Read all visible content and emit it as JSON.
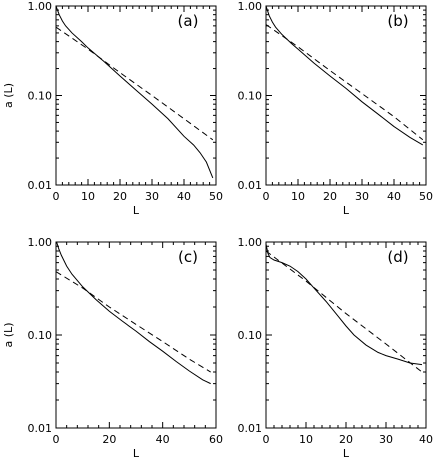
{
  "chart_data": [
    {
      "type": "line",
      "panel_label": "(a)",
      "xlabel": "L",
      "ylabel": "a (L)",
      "xlim": [
        0,
        50
      ],
      "ylim": [
        0.01,
        1.0
      ],
      "yscale": "log",
      "xticks": [
        "0",
        "10",
        "20",
        "30",
        "40",
        "50"
      ],
      "yticks": [
        "0.01",
        "0.10",
        "1.00"
      ],
      "series": [
        {
          "style": "solid",
          "x": [
            0,
            1,
            2,
            3,
            5,
            8,
            10,
            15,
            20,
            25,
            30,
            35,
            40,
            43,
            45,
            47,
            49
          ],
          "y": [
            1.0,
            0.8,
            0.68,
            0.6,
            0.5,
            0.4,
            0.34,
            0.24,
            0.165,
            0.115,
            0.08,
            0.055,
            0.035,
            0.028,
            0.023,
            0.018,
            0.012
          ]
        },
        {
          "style": "dashed",
          "x": [
            0,
            10,
            20,
            30,
            40,
            49
          ],
          "y": [
            0.58,
            0.33,
            0.18,
            0.1,
            0.055,
            0.032
          ]
        }
      ]
    },
    {
      "type": "line",
      "panel_label": "(b)",
      "xlabel": "L",
      "ylabel": "",
      "xlim": [
        0,
        50
      ],
      "ylim": [
        0.01,
        1.0
      ],
      "yscale": "log",
      "xticks": [
        "0",
        "10",
        "20",
        "30",
        "40",
        "50"
      ],
      "yticks": [
        "0.01",
        "0.10",
        "1.00"
      ],
      "series": [
        {
          "style": "solid",
          "x": [
            0,
            1,
            2,
            3,
            5,
            8,
            10,
            15,
            20,
            25,
            30,
            35,
            40,
            45,
            49
          ],
          "y": [
            1.0,
            0.78,
            0.66,
            0.58,
            0.48,
            0.38,
            0.33,
            0.23,
            0.165,
            0.12,
            0.085,
            0.062,
            0.045,
            0.034,
            0.028
          ]
        },
        {
          "style": "dashed",
          "x": [
            0,
            10,
            20,
            30,
            40,
            49
          ],
          "y": [
            0.62,
            0.35,
            0.19,
            0.105,
            0.058,
            0.032
          ]
        }
      ]
    },
    {
      "type": "line",
      "panel_label": "(c)",
      "xlabel": "L",
      "ylabel": "a (L)",
      "xlim": [
        0,
        60
      ],
      "ylim": [
        0.01,
        1.0
      ],
      "yscale": "log",
      "xticks": [
        "0",
        "20",
        "40",
        "60"
      ],
      "yticks": [
        "0.01",
        "0.10",
        "1.00"
      ],
      "series": [
        {
          "style": "solid",
          "x": [
            0,
            1,
            2,
            4,
            6,
            10,
            15,
            20,
            25,
            30,
            35,
            40,
            45,
            50,
            55,
            58
          ],
          "y": [
            1.05,
            0.85,
            0.72,
            0.55,
            0.45,
            0.33,
            0.24,
            0.18,
            0.14,
            0.11,
            0.085,
            0.067,
            0.052,
            0.041,
            0.033,
            0.03
          ]
        },
        {
          "style": "dashed",
          "x": [
            0,
            10,
            20,
            30,
            40,
            50,
            58
          ],
          "y": [
            0.48,
            0.32,
            0.2,
            0.13,
            0.085,
            0.055,
            0.04
          ]
        }
      ]
    },
    {
      "type": "line",
      "panel_label": "(d)",
      "xlabel": "L",
      "ylabel": "",
      "xlim": [
        0,
        40
      ],
      "ylim": [
        0.01,
        1.0
      ],
      "yscale": "log",
      "xticks": [
        "0",
        "10",
        "20",
        "30",
        "40"
      ],
      "yticks": [
        "0.01",
        "0.10",
        "1.00"
      ],
      "series": [
        {
          "style": "solid",
          "x": [
            0,
            0.5,
            1,
            2,
            4,
            6,
            8,
            10,
            12,
            15,
            18,
            20,
            22,
            25,
            28,
            30,
            33,
            36,
            39
          ],
          "y": [
            0.95,
            0.75,
            0.68,
            0.64,
            0.6,
            0.55,
            0.48,
            0.4,
            0.32,
            0.23,
            0.16,
            0.125,
            0.1,
            0.078,
            0.065,
            0.06,
            0.055,
            0.05,
            0.048
          ]
        },
        {
          "style": "dashed",
          "x": [
            0,
            10,
            20,
            30,
            39
          ],
          "y": [
            0.8,
            0.38,
            0.17,
            0.08,
            0.04
          ]
        }
      ]
    }
  ]
}
